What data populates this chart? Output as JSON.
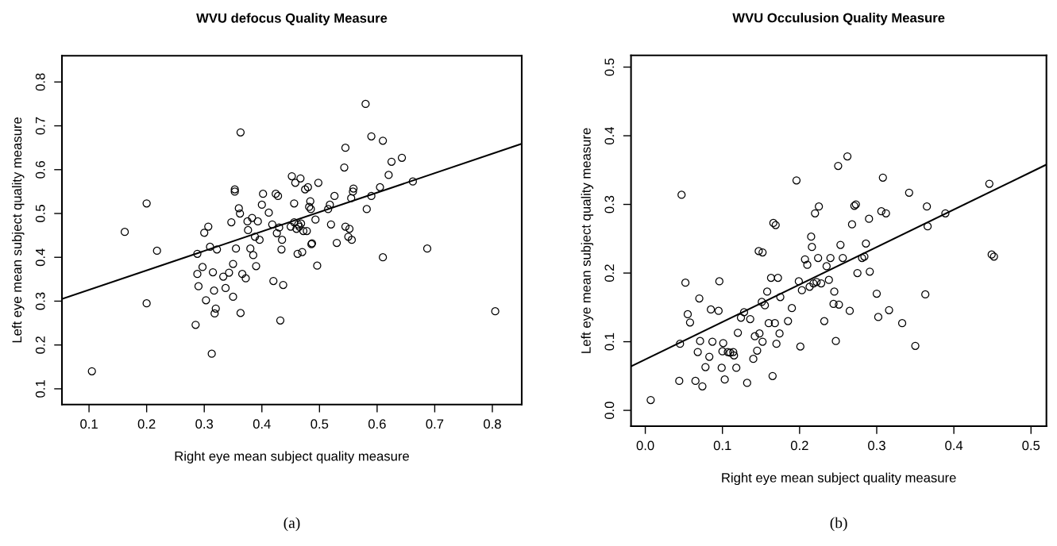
{
  "chart_data": [
    {
      "type": "scatter",
      "title": "WVU defocus Quality Measure",
      "xlabel": "Right eye mean subject quality measure",
      "ylabel": "Left eye mean subject quality measure",
      "annotations": [
        "(a)"
      ],
      "grid": false,
      "xlim": [
        0.053,
        0.851
      ],
      "ylim": [
        0.064,
        0.86
      ],
      "xticks": [
        0.1,
        0.2,
        0.3,
        0.4,
        0.5,
        0.6,
        0.7,
        0.8
      ],
      "yticks": [
        0.1,
        0.2,
        0.3,
        0.4,
        0.5,
        0.6,
        0.7,
        0.8
      ],
      "series": [
        {
          "marker": "circle",
          "color": "#000000",
          "x": [
            0.105,
            0.162,
            0.2,
            0.2,
            0.218,
            0.285,
            0.288,
            0.288,
            0.29,
            0.297,
            0.3,
            0.303,
            0.307,
            0.31,
            0.313,
            0.315,
            0.317,
            0.318,
            0.32,
            0.322,
            0.333,
            0.337,
            0.343,
            0.347,
            0.35,
            0.35,
            0.353,
            0.353,
            0.355,
            0.36,
            0.362,
            0.363,
            0.363,
            0.366,
            0.372,
            0.375,
            0.376,
            0.38,
            0.383,
            0.385,
            0.388,
            0.39,
            0.393,
            0.396,
            0.4,
            0.402,
            0.412,
            0.418,
            0.42,
            0.424,
            0.426,
            0.428,
            0.43,
            0.432,
            0.434,
            0.435,
            0.437,
            0.45,
            0.452,
            0.456,
            0.456,
            0.458,
            0.46,
            0.462,
            0.463,
            0.465,
            0.467,
            0.468,
            0.47,
            0.472,
            0.475,
            0.478,
            0.48,
            0.482,
            0.484,
            0.485,
            0.486,
            0.487,
            0.493,
            0.496,
            0.498,
            0.515,
            0.518,
            0.52,
            0.526,
            0.53,
            0.543,
            0.545,
            0.545,
            0.55,
            0.552,
            0.555,
            0.556,
            0.558,
            0.559,
            0.58,
            0.582,
            0.59,
            0.59,
            0.605,
            0.61,
            0.61,
            0.62,
            0.625,
            0.643,
            0.662,
            0.687,
            0.805
          ],
          "values": [
            0.14,
            0.458,
            0.523,
            0.295,
            0.415,
            0.246,
            0.408,
            0.362,
            0.334,
            0.378,
            0.456,
            0.302,
            0.47,
            0.424,
            0.18,
            0.366,
            0.324,
            0.272,
            0.283,
            0.418,
            0.356,
            0.33,
            0.365,
            0.48,
            0.31,
            0.385,
            0.55,
            0.555,
            0.42,
            0.512,
            0.5,
            0.273,
            0.685,
            0.362,
            0.352,
            0.482,
            0.462,
            0.42,
            0.49,
            0.405,
            0.447,
            0.38,
            0.482,
            0.44,
            0.52,
            0.545,
            0.502,
            0.475,
            0.346,
            0.545,
            0.455,
            0.54,
            0.468,
            0.256,
            0.418,
            0.44,
            0.337,
            0.47,
            0.585,
            0.48,
            0.523,
            0.57,
            0.465,
            0.408,
            0.475,
            0.47,
            0.58,
            0.477,
            0.412,
            0.46,
            0.555,
            0.46,
            0.56,
            0.515,
            0.528,
            0.51,
            0.43,
            0.432,
            0.486,
            0.381,
            0.57,
            0.51,
            0.52,
            0.475,
            0.54,
            0.433,
            0.605,
            0.65,
            0.47,
            0.447,
            0.465,
            0.535,
            0.44,
            0.55,
            0.557,
            0.75,
            0.51,
            0.676,
            0.54,
            0.56,
            0.4,
            0.666,
            0.588,
            0.618,
            0.627,
            0.573,
            0.42,
            0.277
          ]
        },
        {
          "type": "line",
          "marker": "none",
          "color": "#000000",
          "x": [
            0.053,
            0.851
          ],
          "values": [
            0.305,
            0.659
          ]
        }
      ]
    },
    {
      "type": "scatter",
      "title": "WVU Occulusion Quality Measure",
      "xlabel": "Right eye mean subject quality measure",
      "ylabel": "Left eye mean subject quality measure",
      "annotations": [
        "(b)"
      ],
      "grid": false,
      "xlim": [
        -0.0185,
        0.52
      ],
      "ylim": [
        -0.023,
        0.517
      ],
      "xticks": [
        {
          "value": 0,
          "label": "0.0"
        },
        0.1,
        0.2,
        0.3,
        0.4,
        0.5
      ],
      "yticks": [
        {
          "value": 0,
          "label": "0.0"
        },
        0.1,
        0.2,
        0.3,
        0.4,
        0.5
      ],
      "series": [
        {
          "marker": "circle",
          "color": "#000000",
          "x": [
            0.007,
            0.044,
            0.045,
            0.047,
            0.052,
            0.055,
            0.058,
            0.065,
            0.068,
            0.07,
            0.071,
            0.074,
            0.078,
            0.083,
            0.085,
            0.087,
            0.095,
            0.096,
            0.099,
            0.1,
            0.101,
            0.103,
            0.107,
            0.11,
            0.114,
            0.115,
            0.118,
            0.12,
            0.124,
            0.128,
            0.132,
            0.136,
            0.14,
            0.142,
            0.145,
            0.147,
            0.148,
            0.151,
            0.152,
            0.152,
            0.155,
            0.158,
            0.16,
            0.163,
            0.165,
            0.166,
            0.168,
            0.169,
            0.17,
            0.172,
            0.174,
            0.175,
            0.185,
            0.19,
            0.196,
            0.199,
            0.201,
            0.203,
            0.207,
            0.21,
            0.213,
            0.215,
            0.216,
            0.218,
            0.22,
            0.222,
            0.224,
            0.225,
            0.228,
            0.232,
            0.235,
            0.238,
            0.24,
            0.244,
            0.245,
            0.247,
            0.25,
            0.251,
            0.253,
            0.256,
            0.262,
            0.265,
            0.268,
            0.271,
            0.273,
            0.275,
            0.281,
            0.284,
            0.286,
            0.29,
            0.291,
            0.3,
            0.302,
            0.306,
            0.308,
            0.312,
            0.316,
            0.333,
            0.342,
            0.35,
            0.365,
            0.363,
            0.366,
            0.389,
            0.446,
            0.449,
            0.452
          ],
          "values": [
            0.015,
            0.043,
            0.097,
            0.314,
            0.186,
            0.14,
            0.128,
            0.043,
            0.085,
            0.163,
            0.101,
            0.035,
            0.063,
            0.078,
            0.147,
            0.1,
            0.145,
            0.188,
            0.062,
            0.086,
            0.098,
            0.045,
            0.085,
            0.084,
            0.085,
            0.08,
            0.062,
            0.113,
            0.135,
            0.143,
            0.04,
            0.133,
            0.075,
            0.108,
            0.087,
            0.232,
            0.112,
            0.158,
            0.23,
            0.1,
            0.153,
            0.173,
            0.127,
            0.193,
            0.05,
            0.273,
            0.127,
            0.27,
            0.097,
            0.193,
            0.112,
            0.165,
            0.13,
            0.149,
            0.335,
            0.188,
            0.093,
            0.175,
            0.22,
            0.212,
            0.18,
            0.253,
            0.238,
            0.185,
            0.287,
            0.187,
            0.222,
            0.297,
            0.185,
            0.13,
            0.21,
            0.19,
            0.222,
            0.155,
            0.173,
            0.101,
            0.356,
            0.154,
            0.241,
            0.222,
            0.37,
            0.145,
            0.271,
            0.298,
            0.3,
            0.2,
            0.222,
            0.224,
            0.243,
            0.279,
            0.202,
            0.17,
            0.136,
            0.29,
            0.339,
            0.287,
            0.146,
            0.127,
            0.317,
            0.094,
            0.297,
            0.169,
            0.268,
            0.287,
            0.33,
            0.227,
            0.224
          ]
        },
        {
          "type": "line",
          "marker": "none",
          "color": "#000000",
          "x": [
            -0.0185,
            0.52
          ],
          "values": [
            0.064,
            0.358
          ]
        }
      ]
    }
  ]
}
